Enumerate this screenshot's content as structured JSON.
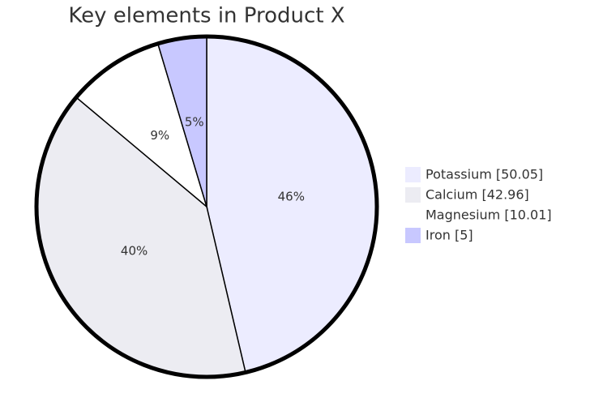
{
  "chart_data": {
    "type": "pie",
    "title": "Key elements in Product X",
    "categories": [
      "Potassium",
      "Calcium",
      "Magnesium",
      "Iron"
    ],
    "values": [
      50.05,
      42.96,
      10.01,
      5
    ],
    "value_labels": [
      "46%",
      "40%",
      "9%",
      "5%"
    ],
    "legend_labels": [
      "Potassium [50.05]",
      "Calcium [42.96]",
      "Magnesium [10.01]",
      "Iron [5]"
    ],
    "colors": [
      "#ececff",
      "#ececf2",
      "#ffffff",
      "#c8c8ff"
    ]
  }
}
